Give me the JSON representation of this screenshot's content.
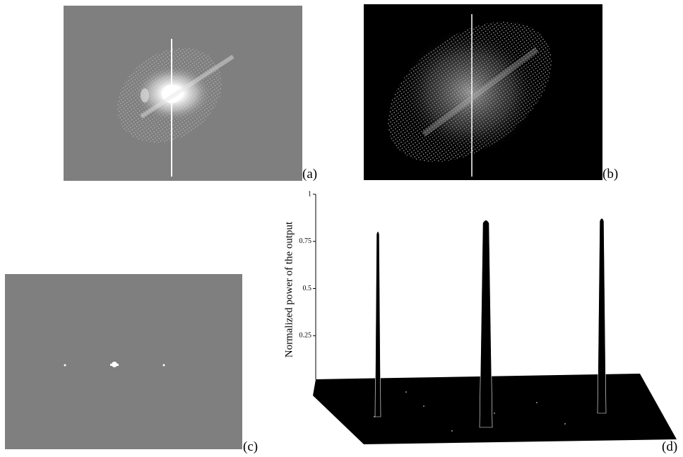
{
  "panels": [
    {
      "label": "(a)"
    },
    {
      "label": "(b)"
    },
    {
      "label": "(c)"
    },
    {
      "label": "(d)"
    }
  ],
  "plot_d": {
    "ylabel": "Normalized power of the output",
    "ylim": [
      0,
      1
    ],
    "yticks": [
      1,
      0.75,
      0.5,
      0.25
    ],
    "peaks": [
      0.81,
      0.87,
      0.88
    ]
  }
}
